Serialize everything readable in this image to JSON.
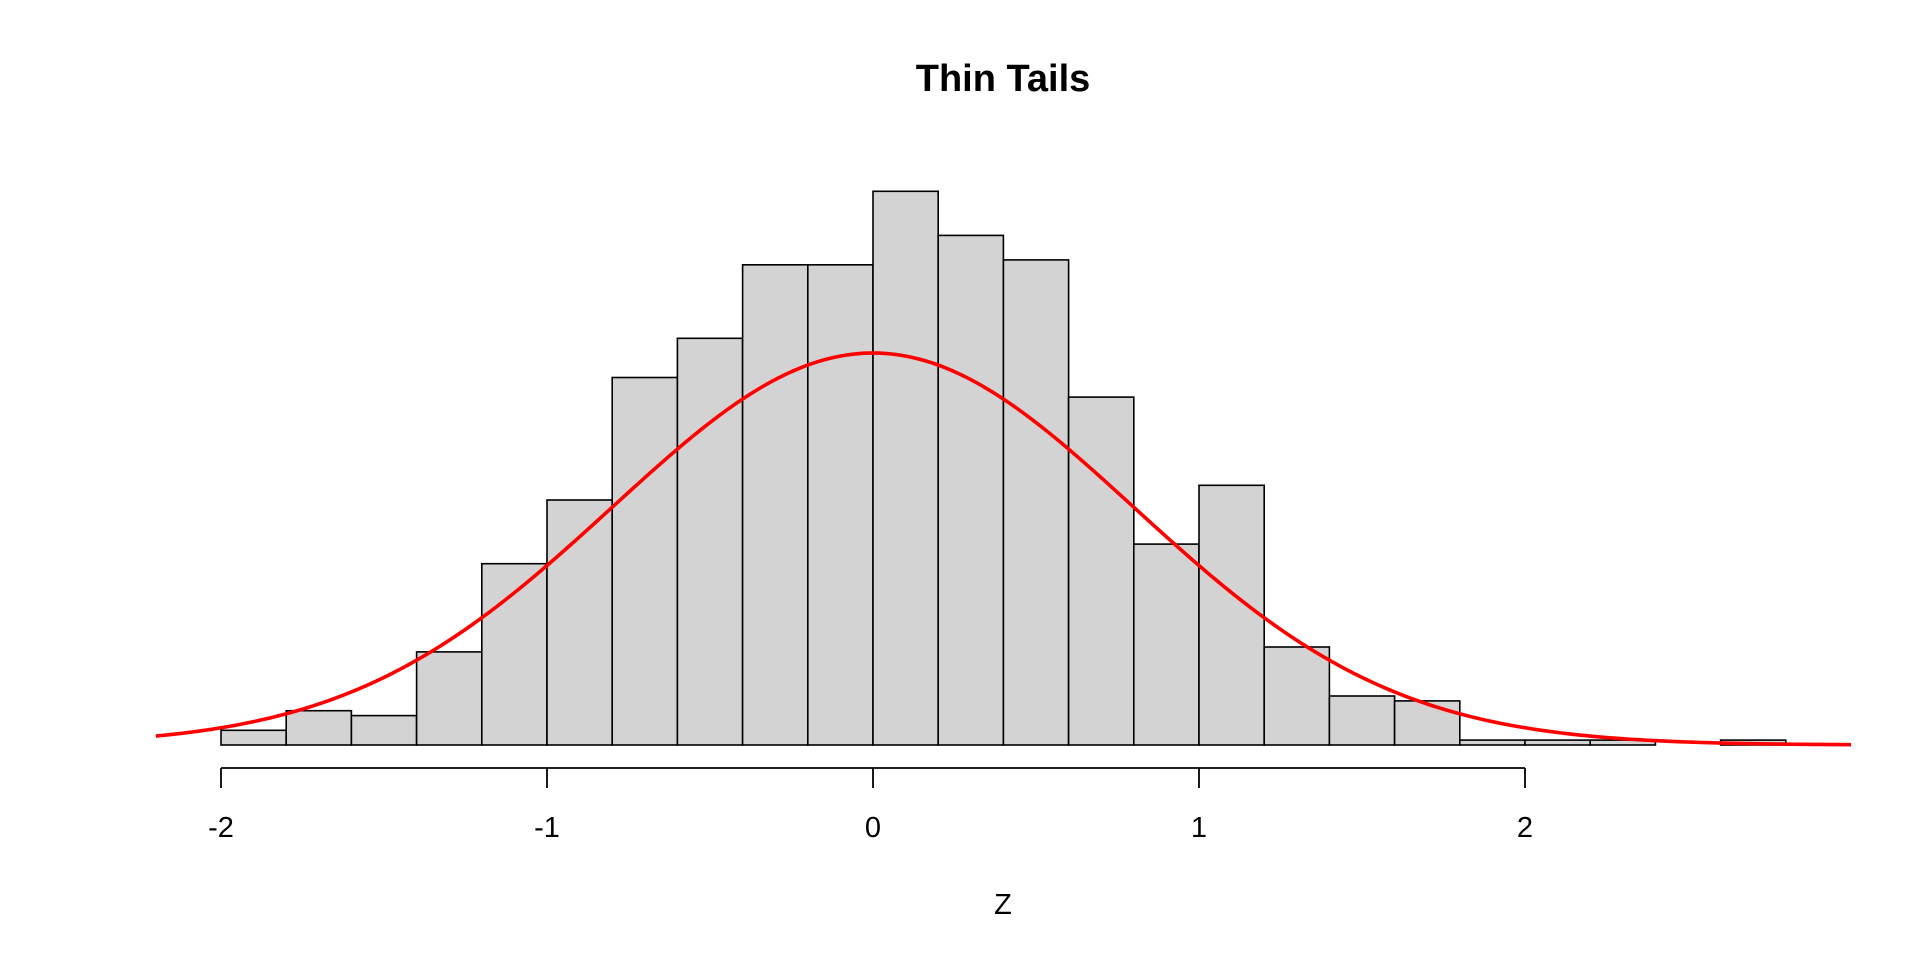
{
  "chart_data": {
    "type": "bar",
    "title": "Thin Tails",
    "xlabel": "Z",
    "ylabel": "",
    "bin_edges": [
      -2.0,
      -1.8,
      -1.6,
      -1.4,
      -1.2,
      -1.0,
      -0.8,
      -0.6,
      -0.4,
      -0.2,
      0.0,
      0.2,
      0.4,
      0.6,
      0.8,
      1.0,
      1.2,
      1.4,
      1.6,
      1.8,
      2.0,
      2.2,
      2.4,
      2.6,
      2.8
    ],
    "density": [
      0.03,
      0.07,
      0.06,
      0.19,
      0.37,
      0.5,
      0.75,
      0.83,
      0.98,
      0.98,
      1.13,
      1.04,
      0.99,
      0.71,
      0.41,
      0.53,
      0.2,
      0.1,
      0.09,
      0.01,
      0.01,
      0.01,
      0.0,
      0.01
    ],
    "xlim": [
      -2.2,
      3.0
    ],
    "ylim": [
      0,
      1.15
    ],
    "x_ticks": [
      -2,
      -1,
      0,
      1,
      2
    ],
    "x_tick_labels": [
      "-2",
      "-1",
      "0",
      "1",
      "2"
    ],
    "y_axis_shown": false,
    "overlay": {
      "type": "line",
      "description": "normal density curve",
      "mean": 0,
      "sd": 0.8,
      "peak": 0.8,
      "x_range": [
        -2.2,
        3.0
      ],
      "color": "#ff0000"
    },
    "bar_fill": "#d3d3d3",
    "bar_stroke": "#000000",
    "grid": false,
    "legend": "none"
  }
}
